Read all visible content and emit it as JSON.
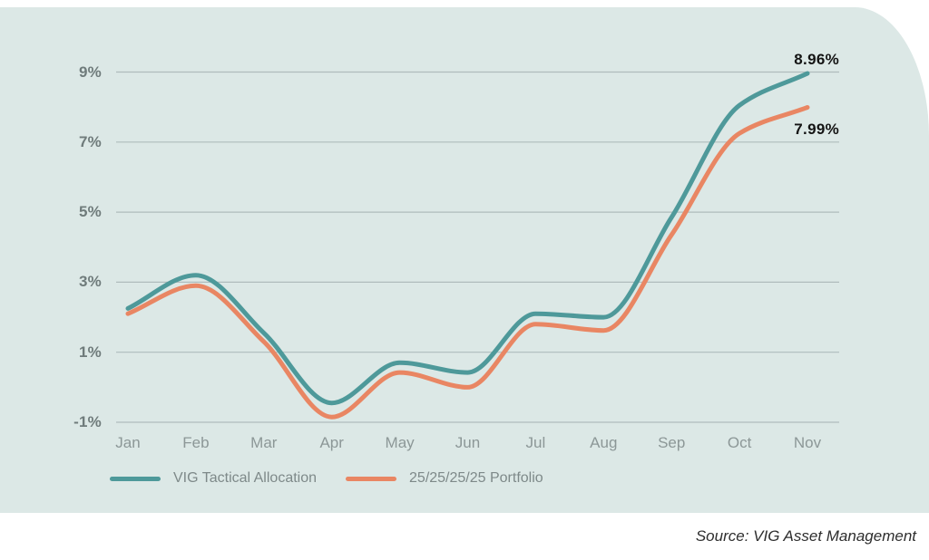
{
  "chart_data": {
    "type": "line",
    "categories": [
      "Jan",
      "Feb",
      "Mar",
      "Apr",
      "May",
      "Jun",
      "Jul",
      "Aug",
      "Sep",
      "Oct",
      "Nov"
    ],
    "series": [
      {
        "name": "VIG Tactical Allocation",
        "color": "#4E999A",
        "values": [
          2.25,
          3.2,
          1.55,
          -0.45,
          0.7,
          0.42,
          2.1,
          2.0,
          4.85,
          8.05,
          8.96
        ],
        "end_label": "8.96%"
      },
      {
        "name": "25/25/25/25 Portfolio",
        "color": "#E98663",
        "values": [
          2.1,
          2.9,
          1.3,
          -0.85,
          0.42,
          0.0,
          1.8,
          1.62,
          4.35,
          7.25,
          7.99
        ],
        "end_label": "7.99%"
      }
    ],
    "yticks": {
      "values": [
        9,
        7,
        5,
        3,
        1,
        -1
      ],
      "labels": [
        "9%",
        "7%",
        "5%",
        "3%",
        "1%",
        "-1%"
      ]
    },
    "ylim": [
      -1,
      9
    ],
    "grid": "horizontal",
    "legend_position": "bottom"
  },
  "source": {
    "text": "Source: VIG Asset Management"
  },
  "colors": {
    "panel_bg": "#DCE8E6",
    "grid": "#AFBCBC",
    "ytick_label": "#6F7B7B",
    "xtick_label": "#8C9797",
    "legend_label": "#7E8989",
    "annotation": "#141414"
  }
}
